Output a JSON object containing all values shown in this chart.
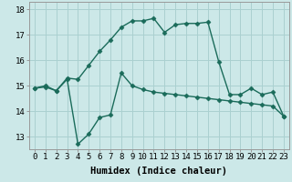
{
  "line1_x": [
    0,
    1,
    2,
    3,
    4,
    5,
    6,
    7,
    8,
    9,
    10,
    11,
    12,
    13,
    14,
    15,
    16,
    17,
    18,
    19,
    20,
    21,
    22,
    23
  ],
  "line1_y": [
    14.9,
    14.95,
    14.8,
    15.25,
    12.7,
    13.1,
    13.75,
    13.85,
    15.5,
    15.0,
    14.85,
    14.75,
    14.7,
    14.65,
    14.6,
    14.55,
    14.5,
    14.45,
    14.4,
    14.35,
    14.3,
    14.25,
    14.2,
    13.8
  ],
  "line2_x": [
    0,
    1,
    2,
    3,
    4,
    5,
    6,
    7,
    8,
    9,
    10,
    11,
    12,
    13,
    14,
    15,
    16,
    17,
    18,
    19,
    20,
    21,
    22,
    23
  ],
  "line2_y": [
    14.9,
    15.0,
    14.8,
    15.3,
    15.25,
    15.8,
    16.35,
    16.8,
    17.3,
    17.55,
    17.55,
    17.65,
    17.1,
    17.4,
    17.45,
    17.45,
    17.5,
    15.95,
    14.65,
    14.65,
    14.9,
    14.65,
    14.75,
    13.8
  ],
  "line_color": "#1a6b5a",
  "bg_color": "#cce8e8",
  "grid_color": "#aad0d0",
  "xlabel": "Humidex (Indice chaleur)",
  "ylabel_ticks": [
    13,
    14,
    15,
    16,
    17,
    18
  ],
  "xlim": [
    -0.5,
    23.5
  ],
  "ylim": [
    12.5,
    18.3
  ],
  "xticks": [
    0,
    1,
    2,
    3,
    4,
    5,
    6,
    7,
    8,
    9,
    10,
    11,
    12,
    13,
    14,
    15,
    16,
    17,
    18,
    19,
    20,
    21,
    22,
    23
  ],
  "marker": "D",
  "markersize": 2.5,
  "linewidth": 1.0,
  "xlabel_fontsize": 7.5,
  "tick_fontsize": 6.5
}
